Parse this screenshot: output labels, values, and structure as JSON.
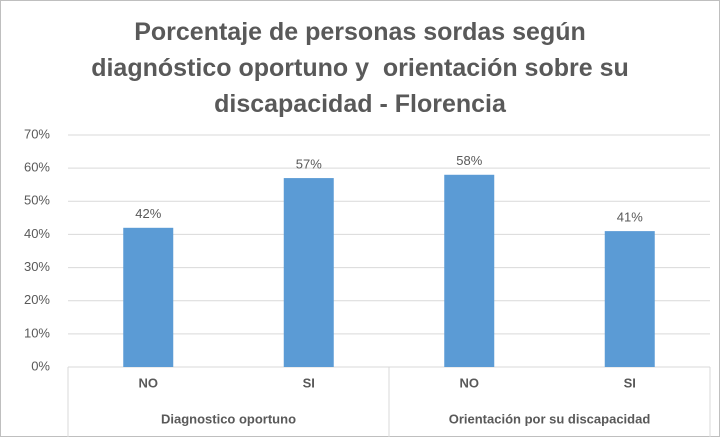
{
  "chart_data": {
    "type": "bar",
    "title": "Porcentaje de personas sordas según diagnóstico oportuno y  orientación sobre su discapacidad - Florencia",
    "categories": [
      "NO",
      "SI",
      "NO",
      "SI"
    ],
    "groups": [
      "Diagnostico oportuno",
      "Orientación por su discapacidad"
    ],
    "values": [
      42,
      57,
      58,
      41
    ],
    "value_labels": [
      "42%",
      "57%",
      "58%",
      "41%"
    ],
    "color": "#5b9bd5",
    "ylim": [
      0,
      70
    ],
    "yticks": [
      {
        "value": 0,
        "label": "0%"
      },
      {
        "value": 10,
        "label": "10%"
      },
      {
        "value": 20,
        "label": "20%"
      },
      {
        "value": 30,
        "label": "30%"
      },
      {
        "value": 40,
        "label": "40%"
      },
      {
        "value": 50,
        "label": "50%"
      },
      {
        "value": 60,
        "label": "60%"
      },
      {
        "value": 70,
        "label": "70%"
      }
    ],
    "grid": true
  }
}
